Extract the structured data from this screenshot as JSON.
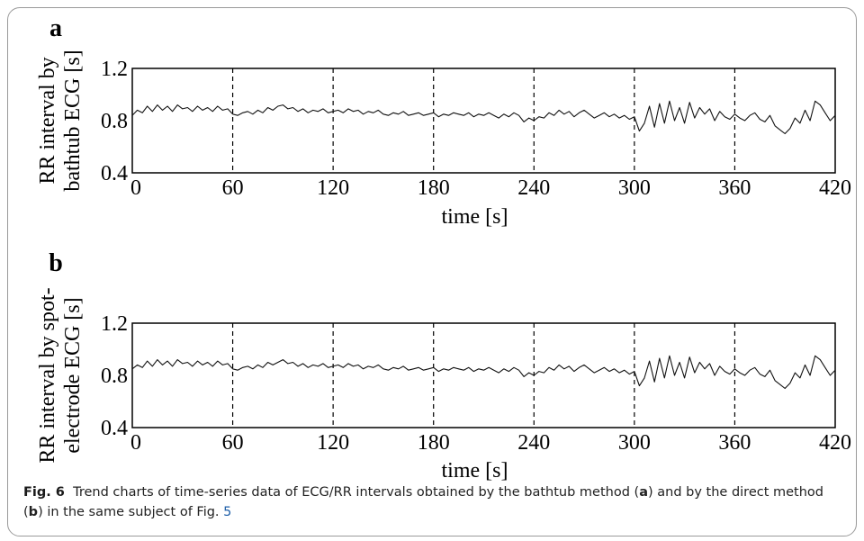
{
  "chart_data": [
    {
      "panel_label": "a",
      "type": "line",
      "ylabel_lines": [
        "RR interval by",
        "bathtub ECG [s]"
      ],
      "xlabel": "time [s]",
      "xlim": [
        0,
        420
      ],
      "ylim": [
        0.4,
        1.2
      ],
      "xticks": [
        "0",
        "60",
        "120",
        "180",
        "240",
        "300",
        "360",
        "420"
      ],
      "yticks": [
        "0.4",
        "0.8",
        "1.2"
      ],
      "vlines": [
        60,
        120,
        180,
        240,
        300,
        360
      ],
      "series": [
        {
          "x": [
            0,
            3,
            6,
            9,
            12,
            15,
            18,
            21,
            24,
            27,
            30,
            33,
            36,
            39,
            42,
            45,
            48,
            51,
            54,
            57,
            60,
            63,
            66,
            69,
            72,
            75,
            78,
            81,
            84,
            87,
            90,
            93,
            96,
            99,
            102,
            105,
            108,
            111,
            114,
            117,
            120,
            123,
            126,
            129,
            132,
            135,
            138,
            141,
            144,
            147,
            150,
            153,
            156,
            159,
            162,
            165,
            168,
            171,
            174,
            177,
            180,
            183,
            186,
            189,
            192,
            195,
            198,
            201,
            204,
            207,
            210,
            213,
            216,
            219,
            222,
            225,
            228,
            231,
            234,
            237,
            240,
            243,
            246,
            249,
            252,
            255,
            258,
            261,
            264,
            267,
            270,
            273,
            276,
            279,
            282,
            285,
            288,
            291,
            294,
            297,
            300,
            303,
            306,
            309,
            312,
            315,
            318,
            321,
            324,
            327,
            330,
            333,
            336,
            339,
            342,
            345,
            348,
            351,
            354,
            357,
            360,
            363,
            366,
            369,
            372,
            375,
            378,
            381,
            384,
            387,
            390,
            393,
            396,
            399,
            402,
            405,
            408,
            411,
            414,
            417,
            420
          ],
          "y": [
            0.84,
            0.88,
            0.86,
            0.91,
            0.87,
            0.92,
            0.88,
            0.91,
            0.87,
            0.92,
            0.89,
            0.9,
            0.87,
            0.91,
            0.88,
            0.9,
            0.87,
            0.91,
            0.88,
            0.89,
            0.85,
            0.84,
            0.86,
            0.87,
            0.85,
            0.88,
            0.86,
            0.9,
            0.88,
            0.91,
            0.92,
            0.89,
            0.9,
            0.87,
            0.89,
            0.86,
            0.88,
            0.87,
            0.89,
            0.86,
            0.87,
            0.88,
            0.86,
            0.89,
            0.87,
            0.88,
            0.85,
            0.87,
            0.86,
            0.88,
            0.85,
            0.84,
            0.86,
            0.85,
            0.87,
            0.84,
            0.85,
            0.86,
            0.84,
            0.85,
            0.86,
            0.83,
            0.85,
            0.84,
            0.86,
            0.85,
            0.84,
            0.86,
            0.83,
            0.85,
            0.84,
            0.86,
            0.84,
            0.82,
            0.85,
            0.83,
            0.86,
            0.84,
            0.79,
            0.82,
            0.8,
            0.83,
            0.82,
            0.86,
            0.84,
            0.88,
            0.85,
            0.87,
            0.83,
            0.86,
            0.88,
            0.85,
            0.82,
            0.84,
            0.86,
            0.83,
            0.85,
            0.82,
            0.84,
            0.81,
            0.83,
            0.72,
            0.78,
            0.91,
            0.75,
            0.93,
            0.78,
            0.95,
            0.8,
            0.9,
            0.78,
            0.94,
            0.82,
            0.9,
            0.85,
            0.89,
            0.8,
            0.87,
            0.83,
            0.81,
            0.85,
            0.82,
            0.8,
            0.84,
            0.86,
            0.81,
            0.79,
            0.84,
            0.76,
            0.73,
            0.7,
            0.74,
            0.82,
            0.78,
            0.88,
            0.8,
            0.95,
            0.92,
            0.86,
            0.8,
            0.84
          ]
        }
      ]
    },
    {
      "panel_label": "b",
      "type": "line",
      "ylabel_lines": [
        "RR interval by spot-",
        "electrode ECG [s]"
      ],
      "xlabel": "time [s]",
      "xlim": [
        0,
        420
      ],
      "ylim": [
        0.4,
        1.2
      ],
      "xticks": [
        "0",
        "60",
        "120",
        "180",
        "240",
        "300",
        "360",
        "420"
      ],
      "yticks": [
        "0.4",
        "0.8",
        "1.2"
      ],
      "vlines": [
        60,
        120,
        180,
        240,
        300,
        360
      ],
      "series": [
        {
          "x": [
            0,
            3,
            6,
            9,
            12,
            15,
            18,
            21,
            24,
            27,
            30,
            33,
            36,
            39,
            42,
            45,
            48,
            51,
            54,
            57,
            60,
            63,
            66,
            69,
            72,
            75,
            78,
            81,
            84,
            87,
            90,
            93,
            96,
            99,
            102,
            105,
            108,
            111,
            114,
            117,
            120,
            123,
            126,
            129,
            132,
            135,
            138,
            141,
            144,
            147,
            150,
            153,
            156,
            159,
            162,
            165,
            168,
            171,
            174,
            177,
            180,
            183,
            186,
            189,
            192,
            195,
            198,
            201,
            204,
            207,
            210,
            213,
            216,
            219,
            222,
            225,
            228,
            231,
            234,
            237,
            240,
            243,
            246,
            249,
            252,
            255,
            258,
            261,
            264,
            267,
            270,
            273,
            276,
            279,
            282,
            285,
            288,
            291,
            294,
            297,
            300,
            303,
            306,
            309,
            312,
            315,
            318,
            321,
            324,
            327,
            330,
            333,
            336,
            339,
            342,
            345,
            348,
            351,
            354,
            357,
            360,
            363,
            366,
            369,
            372,
            375,
            378,
            381,
            384,
            387,
            390,
            393,
            396,
            399,
            402,
            405,
            408,
            411,
            414,
            417,
            420
          ],
          "y": [
            0.85,
            0.88,
            0.86,
            0.91,
            0.87,
            0.92,
            0.88,
            0.91,
            0.87,
            0.92,
            0.89,
            0.9,
            0.87,
            0.91,
            0.88,
            0.9,
            0.87,
            0.91,
            0.88,
            0.89,
            0.85,
            0.84,
            0.86,
            0.87,
            0.85,
            0.88,
            0.86,
            0.9,
            0.88,
            0.9,
            0.92,
            0.89,
            0.9,
            0.87,
            0.89,
            0.86,
            0.88,
            0.87,
            0.89,
            0.86,
            0.87,
            0.88,
            0.86,
            0.89,
            0.87,
            0.88,
            0.85,
            0.87,
            0.86,
            0.88,
            0.85,
            0.84,
            0.86,
            0.85,
            0.87,
            0.84,
            0.85,
            0.86,
            0.84,
            0.85,
            0.86,
            0.83,
            0.85,
            0.84,
            0.86,
            0.85,
            0.84,
            0.86,
            0.83,
            0.85,
            0.84,
            0.86,
            0.84,
            0.82,
            0.85,
            0.83,
            0.86,
            0.84,
            0.79,
            0.82,
            0.8,
            0.83,
            0.82,
            0.86,
            0.84,
            0.88,
            0.85,
            0.87,
            0.83,
            0.86,
            0.88,
            0.85,
            0.82,
            0.84,
            0.86,
            0.83,
            0.85,
            0.82,
            0.84,
            0.81,
            0.83,
            0.72,
            0.78,
            0.91,
            0.75,
            0.93,
            0.78,
            0.95,
            0.8,
            0.9,
            0.78,
            0.94,
            0.82,
            0.9,
            0.85,
            0.89,
            0.8,
            0.87,
            0.83,
            0.81,
            0.85,
            0.82,
            0.8,
            0.84,
            0.86,
            0.81,
            0.79,
            0.84,
            0.76,
            0.73,
            0.7,
            0.74,
            0.82,
            0.78,
            0.88,
            0.8,
            0.95,
            0.92,
            0.86,
            0.8,
            0.84
          ]
        }
      ]
    }
  ],
  "caption": {
    "fig_label": "Fig. 6",
    "text_1": "Trend charts of time-series data of ECG/RR intervals obtained by the bathtub method (",
    "bold_a": "a",
    "text_2": ") and by the direct method (",
    "bold_b": "b",
    "text_3": ") in the same subject of Fig.",
    "fig_ref": "5"
  }
}
